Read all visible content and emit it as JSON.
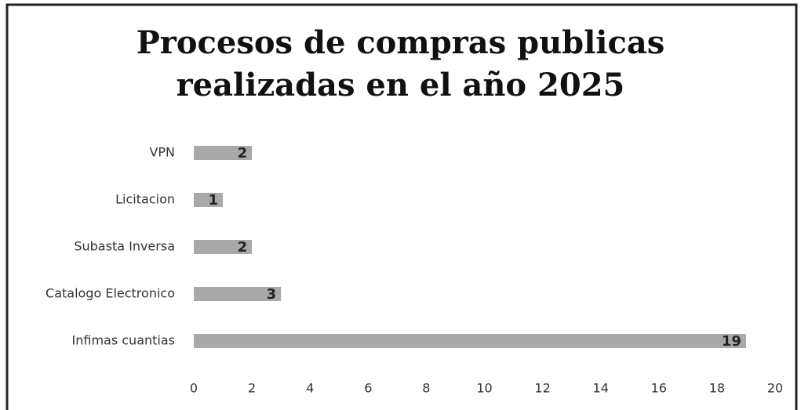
{
  "chart_data": {
    "type": "bar",
    "orientation": "horizontal",
    "title": "Procesos de compras publicas realizadas en el año 2025",
    "categories": [
      "VPN",
      "Licitacion",
      "Subasta Inversa",
      "Catalogo Electronico",
      "Infimas cuantias"
    ],
    "values": [
      2,
      1,
      2,
      3,
      19
    ],
    "color": "#a9a9a9",
    "xlim": [
      0,
      20
    ],
    "xticks": [
      0,
      2,
      4,
      6,
      8,
      10,
      12,
      14,
      16,
      18,
      20
    ],
    "grid": false
  }
}
